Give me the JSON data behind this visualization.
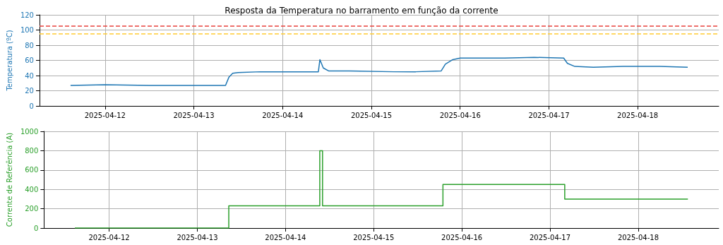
{
  "chart_data": [
    {
      "type": "line",
      "title": "Resposta da Temperatura no barramento em função da corrente",
      "ylabel": "Temperatura (ºC)",
      "x": [
        "2025-04-11T14:40",
        "2025-04-12T00:00",
        "2025-04-12T12:00",
        "2025-04-13T00:00",
        "2025-04-13T08:34",
        "2025-04-13T09:30",
        "2025-04-13T10:30",
        "2025-04-13T12:00",
        "2025-04-13T18:00",
        "2025-04-14T09:40",
        "2025-04-14T10:05",
        "2025-04-14T11:00",
        "2025-04-14T12:30",
        "2025-04-14T18:00",
        "2025-04-15T06:00",
        "2025-04-15T12:00",
        "2025-04-15T18:51",
        "2025-04-15T20:00",
        "2025-04-15T22:00",
        "2025-04-16T00:00",
        "2025-04-16T12:00",
        "2025-04-16T20:00",
        "2025-04-17T04:00",
        "2025-04-17T05:00",
        "2025-04-17T07:00",
        "2025-04-17T12:00",
        "2025-04-17T20:00",
        "2025-04-18T06:00",
        "2025-04-18T13:31"
      ],
      "series": [
        {
          "color": "#1f77b4",
          "values": [
            27,
            28,
            27,
            27,
            27,
            38,
            43,
            44,
            45,
            45,
            61,
            50,
            46,
            46,
            45,
            45,
            46,
            55,
            61,
            63,
            63,
            64,
            63,
            56,
            52,
            51,
            52,
            52,
            51
          ]
        }
      ],
      "ref_lines": [
        {
          "axis": "y",
          "value": 105,
          "color": "#e8413c",
          "line_style": "dashed"
        },
        {
          "axis": "y",
          "value": 95,
          "color": "#ffcc33",
          "line_style": "dashed"
        }
      ],
      "xlim": [
        "2025-04-11T06:17",
        "2025-04-18T21:55"
      ],
      "xticks": [
        "2025-04-12",
        "2025-04-13",
        "2025-04-14",
        "2025-04-15",
        "2025-04-16",
        "2025-04-17",
        "2025-04-18"
      ],
      "ylim": [
        0,
        120
      ],
      "yticks": [
        0,
        20,
        40,
        60,
        80,
        100,
        120
      ],
      "grid": true,
      "marker": "none",
      "line_style": "solid"
    },
    {
      "type": "step",
      "ylabel": "Corrente de Referência (A)",
      "x": [
        "2025-04-11T14:40",
        "2025-04-13T08:34",
        "2025-04-14T09:20",
        "2025-04-14T10:05",
        "2025-04-15T18:51",
        "2025-04-17T04:00",
        "2025-04-18T13:31"
      ],
      "series": [
        {
          "color": "#2ca02c",
          "values": [
            0,
            230,
            800,
            230,
            450,
            300,
            300
          ]
        }
      ],
      "xlim": [
        "2025-04-11T06:17",
        "2025-04-18T21:55"
      ],
      "xticks": [
        "2025-04-12",
        "2025-04-13",
        "2025-04-14",
        "2025-04-15",
        "2025-04-16",
        "2025-04-17",
        "2025-04-18"
      ],
      "ylim": [
        0,
        1000
      ],
      "yticks": [
        0,
        200,
        400,
        600,
        800,
        1000
      ],
      "grid": true,
      "marker": "none",
      "line_style": "solid"
    }
  ]
}
